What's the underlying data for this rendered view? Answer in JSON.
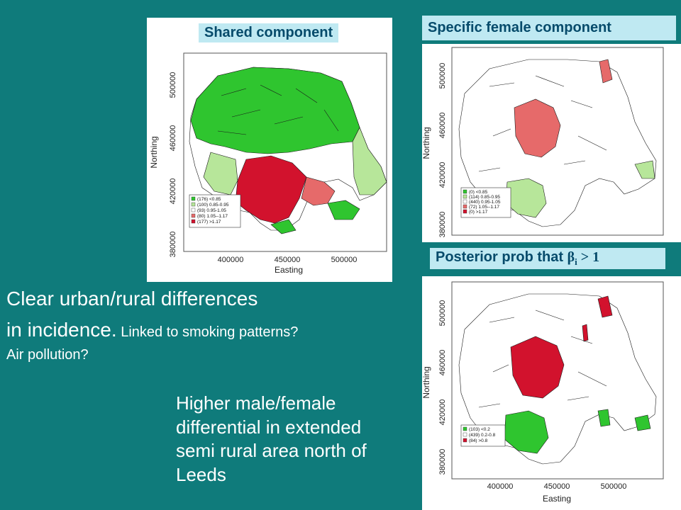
{
  "labels": {
    "shared": "Shared component",
    "female": "Specific female component",
    "posterior_prefix": "Posterior prob that ",
    "posterior_symbol": "β",
    "posterior_sub": "i",
    "posterior_suffix": " > 1"
  },
  "axes": {
    "ylabel": "Northing",
    "xlabel": "Easting",
    "yticks": [
      "380000",
      "420000",
      "460000",
      "500000"
    ],
    "xticks": [
      "400000",
      "450000",
      "500000"
    ]
  },
  "legend_shared": [
    "(176) <0.85",
    "(100) 0.85-0.95",
    "(93) 0.95-1.05",
    "(80) 1.05--1.17",
    "(177) >1.17"
  ],
  "legend_female": [
    "(0) <0.85",
    "(114) 0.85-0.95",
    "(440) 0.95-1.05",
    "(72) 1.05--1.17",
    "(0) >1.17"
  ],
  "legend_posterior": [
    "(103) <0.2",
    "(439) 0.2-0.8",
    "(84) >0.8"
  ],
  "colors": {
    "background": "#0f7b7b",
    "strong_green": "#2fc52f",
    "light_green": "#b7e69a",
    "white": "#ffffff",
    "light_red": "#e66a6a",
    "strong_red": "#d2122d"
  },
  "text": {
    "line1": "Clear urban/rural differences",
    "line2_big": "in incidence.",
    "line2_small": " Linked to smoking patterns?",
    "line3": "Air pollution?",
    "para2": [
      "Higher male/female",
      "differential in extended",
      "semi rural area north of",
      "Leeds"
    ]
  }
}
